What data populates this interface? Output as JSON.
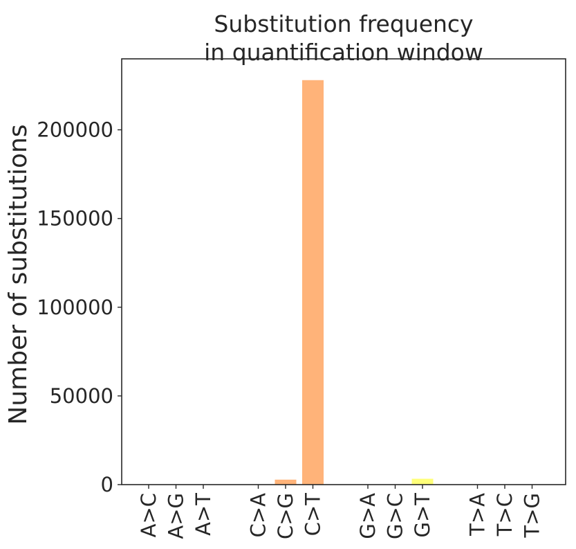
{
  "chart_data": {
    "type": "bar",
    "title_lines": [
      "Substitution frequency",
      "in quantification window"
    ],
    "xlabel": "",
    "ylabel": "Number of substitutions",
    "ylim": [
      0,
      240000
    ],
    "yticks": [
      0,
      50000,
      100000,
      150000,
      200000
    ],
    "ytick_labels": [
      "0",
      "50000",
      "100000",
      "150000",
      "200000"
    ],
    "categories": [
      "A>C",
      "A>G",
      "A>T",
      "C>A",
      "C>G",
      "C>T",
      "G>A",
      "G>C",
      "G>T",
      "T>A",
      "T>C",
      "T>G"
    ],
    "values": [
      0,
      0,
      0,
      0,
      2800,
      228000,
      0,
      0,
      3300,
      0,
      0,
      0
    ],
    "bar_colors": [
      "#7fffa1",
      "#7fffa1",
      "#7fffa1",
      "#ffa058",
      "#ffa058",
      "#ffa058",
      "#ffff58",
      "#ffff58",
      "#ffff58",
      "#7faaff",
      "#7faaff",
      "#7faaff"
    ],
    "grid": false,
    "legend": "none"
  }
}
